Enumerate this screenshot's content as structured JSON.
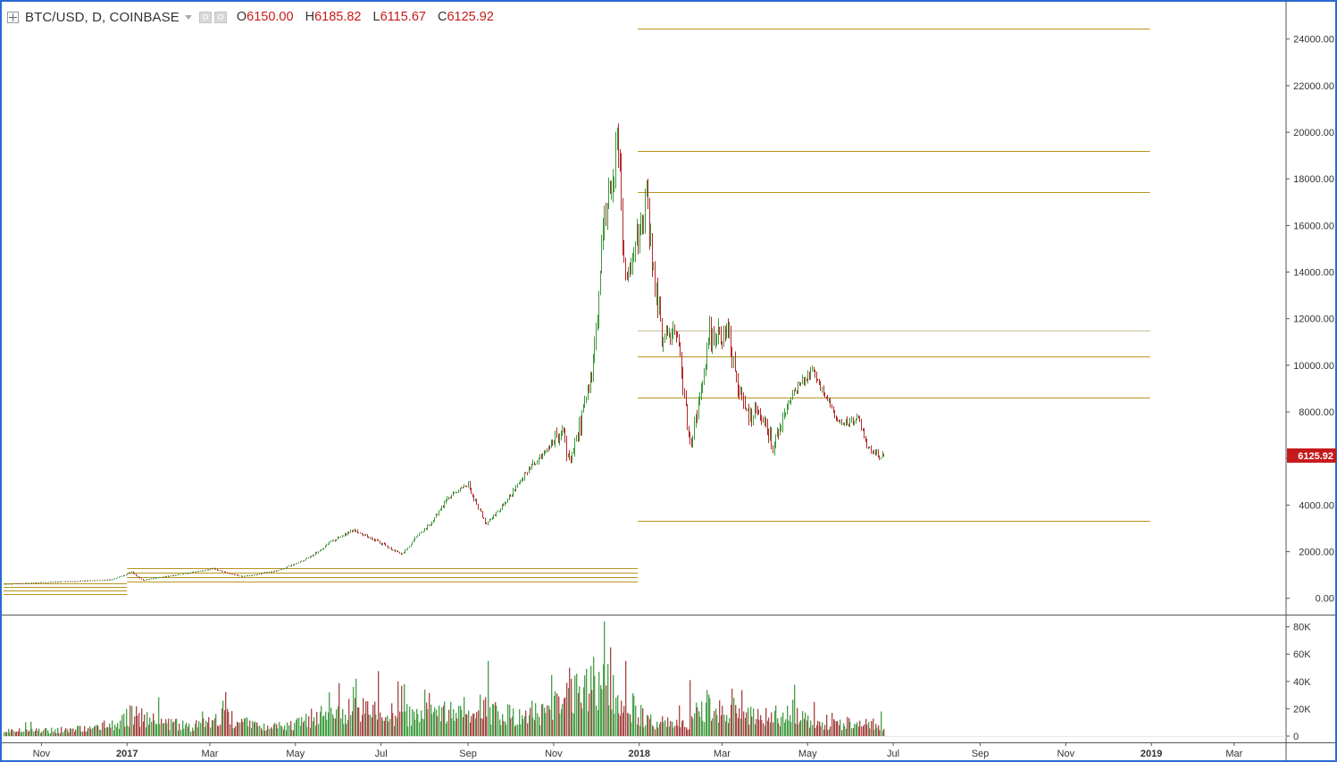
{
  "header": {
    "symbol_line": "BTC/USD, D, COINBASE",
    "ohlc": [
      {
        "key": "O",
        "value": "6150.00"
      },
      {
        "key": "H",
        "value": "6185.82"
      },
      {
        "key": "L",
        "value": "6115.67"
      },
      {
        "key": "C",
        "value": "6125.92"
      }
    ]
  },
  "icons": [
    "expand-icon",
    "dropdown-caret-icon",
    "eye-icon",
    "settings-icon"
  ],
  "colors": {
    "up": "#3c9a3c",
    "down": "#b22a2a",
    "level_line": "#b8951e",
    "price_label_bg": "#c41a1a",
    "border": "#2a6bd6"
  },
  "chart_data": {
    "type": "candlestick",
    "price_axis": {
      "ticks": [
        "0.00",
        "2000.00",
        "4000.00",
        "6000.00",
        "8000.00",
        "10000.00",
        "12000.00",
        "14000.00",
        "16000.00",
        "18000.00",
        "20000.00",
        "22000.00",
        "24000.00"
      ],
      "last_price_label": "6125.92",
      "ylim": [
        -700,
        25600
      ]
    },
    "volume_axis": {
      "ticks": [
        "0",
        "20K",
        "40K",
        "60K",
        "80K"
      ],
      "ylim": [
        0,
        85000
      ]
    },
    "time_axis": {
      "labels": [
        "Nov",
        "2017",
        "Mar",
        "May",
        "Jul",
        "Sep",
        "Nov",
        "2018",
        "Mar",
        "May",
        "Jul",
        "Sep",
        "Nov",
        "2019",
        "Mar"
      ],
      "label_dates": [
        "2016-11-01",
        "2017-01-01",
        "2017-03-01",
        "2017-05-01",
        "2017-07-01",
        "2017-09-01",
        "2017-11-01",
        "2018-01-01",
        "2018-03-01",
        "2018-05-01",
        "2018-07-01",
        "2018-09-01",
        "2018-11-01",
        "2019-01-01",
        "2019-03-01"
      ],
      "bold_labels": [
        "2017",
        "2018",
        "2019"
      ],
      "start_date": "2016-10-05",
      "end_date": "2019-04-07"
    },
    "price_anchors": [
      [
        "2016-10-05",
        610
      ],
      [
        "2016-11-15",
        715
      ],
      [
        "2016-12-20",
        790
      ],
      [
        "2017-01-04",
        1130
      ],
      [
        "2017-01-12",
        780
      ],
      [
        "2017-02-01",
        970
      ],
      [
        "2017-03-03",
        1270
      ],
      [
        "2017-03-24",
        930
      ],
      [
        "2017-04-20",
        1230
      ],
      [
        "2017-05-10",
        1750
      ],
      [
        "2017-05-25",
        2400
      ],
      [
        "2017-06-11",
        2950
      ],
      [
        "2017-06-28",
        2450
      ],
      [
        "2017-07-16",
        1900
      ],
      [
        "2017-07-25",
        2600
      ],
      [
        "2017-08-05",
        3200
      ],
      [
        "2017-08-17",
        4300
      ],
      [
        "2017-09-01",
        4900
      ],
      [
        "2017-09-14",
        3200
      ],
      [
        "2017-09-28",
        4200
      ],
      [
        "2017-10-12",
        5400
      ],
      [
        "2017-10-20",
        5950
      ],
      [
        "2017-11-07",
        7200
      ],
      [
        "2017-11-12",
        5800
      ],
      [
        "2017-11-28",
        9700
      ],
      [
        "2017-12-07",
        16500
      ],
      [
        "2017-12-17",
        19400
      ],
      [
        "2017-12-22",
        13500
      ],
      [
        "2018-01-06",
        17000
      ],
      [
        "2018-01-17",
        11200
      ],
      [
        "2018-01-28",
        11600
      ],
      [
        "2018-02-06",
        6600
      ],
      [
        "2018-02-20",
        11300
      ],
      [
        "2018-03-05",
        11500
      ],
      [
        "2018-03-18",
        7800
      ],
      [
        "2018-03-28",
        8000
      ],
      [
        "2018-04-06",
        6600
      ],
      [
        "2018-04-20",
        8800
      ],
      [
        "2018-05-05",
        9800
      ],
      [
        "2018-05-24",
        7500
      ],
      [
        "2018-06-06",
        7650
      ],
      [
        "2018-06-13",
        6400
      ],
      [
        "2018-06-22",
        6100
      ],
      [
        "2018-06-24",
        6125.92
      ]
    ],
    "volume_anchors": [
      [
        "2016-10-05",
        3500
      ],
      [
        "2016-12-15",
        5500
      ],
      [
        "2017-01-04",
        16000
      ],
      [
        "2017-02-15",
        7000
      ],
      [
        "2017-03-10",
        14000
      ],
      [
        "2017-04-10",
        6000
      ],
      [
        "2017-05-15",
        14000
      ],
      [
        "2017-06-15",
        20000
      ],
      [
        "2017-07-15",
        15000
      ],
      [
        "2017-08-20",
        17000
      ],
      [
        "2017-09-05",
        22000
      ],
      [
        "2017-09-15",
        18000
      ],
      [
        "2017-10-15",
        13000
      ],
      [
        "2017-11-12",
        30000
      ],
      [
        "2017-12-08",
        40000
      ],
      [
        "2017-12-20",
        30000
      ],
      [
        "2018-01-10",
        10000
      ],
      [
        "2018-02-05",
        8000
      ],
      [
        "2018-02-10",
        25000
      ],
      [
        "2018-03-15",
        15000
      ],
      [
        "2018-04-15",
        15000
      ],
      [
        "2018-05-15",
        10000
      ],
      [
        "2018-06-24",
        8000
      ]
    ],
    "volume_spikes": [
      [
        "2017-01-04",
        22000
      ],
      [
        "2017-03-10",
        26000
      ],
      [
        "2017-05-25",
        32000
      ],
      [
        "2017-06-11",
        36000
      ],
      [
        "2017-06-13",
        42000
      ],
      [
        "2017-07-17",
        38000
      ],
      [
        "2017-08-01",
        34000
      ],
      [
        "2017-09-15",
        55000
      ],
      [
        "2017-11-12",
        50000
      ],
      [
        "2017-11-29",
        58000
      ],
      [
        "2017-12-07",
        84000
      ],
      [
        "2017-12-11",
        65000
      ],
      [
        "2017-12-22",
        55000
      ],
      [
        "2018-02-06",
        41000
      ],
      [
        "2018-03-09",
        28000
      ],
      [
        "2018-05-05",
        25000
      ],
      [
        "2018-06-22",
        18000
      ]
    ],
    "horizontal_levels": [
      {
        "price": 24450,
        "from": "2017-12-31",
        "to": "2018-12-31"
      },
      {
        "price": 19180,
        "from": "2017-12-31",
        "to": "2018-12-31"
      },
      {
        "price": 17420,
        "from": "2017-12-31",
        "to": "2018-12-31"
      },
      {
        "price": 11500,
        "from": "2017-12-31",
        "to": "2018-12-31",
        "muted": true
      },
      {
        "price": 10380,
        "from": "2017-12-31",
        "to": "2018-12-31"
      },
      {
        "price": 8630,
        "from": "2017-12-31",
        "to": "2018-12-31"
      },
      {
        "price": 3330,
        "from": "2017-12-31",
        "to": "2018-12-31"
      },
      {
        "price": 1310,
        "from": "2017-01-01",
        "to": "2017-12-31"
      },
      {
        "price": 1110,
        "from": "2017-01-01",
        "to": "2017-12-31"
      },
      {
        "price": 920,
        "from": "2017-01-01",
        "to": "2017-12-31"
      },
      {
        "price": 700,
        "from": "2017-01-01",
        "to": "2017-12-31"
      },
      {
        "price": 640,
        "from": "2016-10-05",
        "to": "2017-01-01"
      },
      {
        "price": 470,
        "from": "2016-10-05",
        "to": "2017-01-01"
      },
      {
        "price": 320,
        "from": "2016-10-05",
        "to": "2017-01-01"
      },
      {
        "price": 180,
        "from": "2016-10-05",
        "to": "2017-01-01"
      }
    ],
    "grid": false,
    "legend": "top-left"
  }
}
